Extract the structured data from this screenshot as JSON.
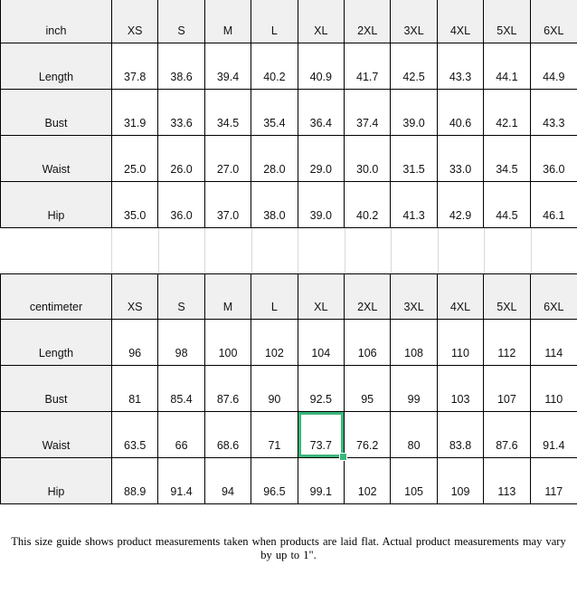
{
  "sizes": [
    "XS",
    "S",
    "M",
    "L",
    "XL",
    "2XL",
    "3XL",
    "4XL",
    "5XL",
    "6XL"
  ],
  "tables": [
    {
      "unit_label": "inch",
      "rows": [
        {
          "label": "Length",
          "values": [
            "37.8",
            "38.6",
            "39.4",
            "40.2",
            "40.9",
            "41.7",
            "42.5",
            "43.3",
            "44.1",
            "44.9"
          ]
        },
        {
          "label": "Bust",
          "values": [
            "31.9",
            "33.6",
            "34.5",
            "35.4",
            "36.4",
            "37.4",
            "39.0",
            "40.6",
            "42.1",
            "43.3"
          ]
        },
        {
          "label": "Waist",
          "values": [
            "25.0",
            "26.0",
            "27.0",
            "28.0",
            "29.0",
            "30.0",
            "31.5",
            "33.0",
            "34.5",
            "36.0"
          ]
        },
        {
          "label": "Hip",
          "values": [
            "35.0",
            "36.0",
            "37.0",
            "38.0",
            "39.0",
            "40.2",
            "41.3",
            "42.9",
            "44.5",
            "46.1"
          ]
        }
      ]
    },
    {
      "unit_label": "centimeter",
      "rows": [
        {
          "label": "Length",
          "values": [
            "96",
            "98",
            "100",
            "102",
            "104",
            "106",
            "108",
            "110",
            "112",
            "114"
          ]
        },
        {
          "label": "Bust",
          "values": [
            "81",
            "85.4",
            "87.6",
            "90",
            "92.5",
            "95",
            "99",
            "103",
            "107",
            "110"
          ]
        },
        {
          "label": "Waist",
          "values": [
            "63.5",
            "66",
            "68.6",
            "71",
            "73.7",
            "76.2",
            "80",
            "83.8",
            "87.6",
            "91.4"
          ]
        },
        {
          "label": "Hip",
          "values": [
            "88.9",
            "91.4",
            "94",
            "96.5",
            "99.1",
            "102",
            "105",
            "109",
            "113",
            "117"
          ]
        }
      ]
    }
  ],
  "selection": {
    "table_index": 1,
    "row_label": "Waist",
    "size": "XL",
    "value": "73.7",
    "color": "#3ab77a"
  },
  "colors": {
    "header_shade": "#f0f0f0",
    "grid_line": "#000000",
    "separator_line": "#d9d9d9"
  },
  "footnote": "This size guide shows product measurements taken when products are laid flat. Actual product measurements may vary by up to 1\"."
}
